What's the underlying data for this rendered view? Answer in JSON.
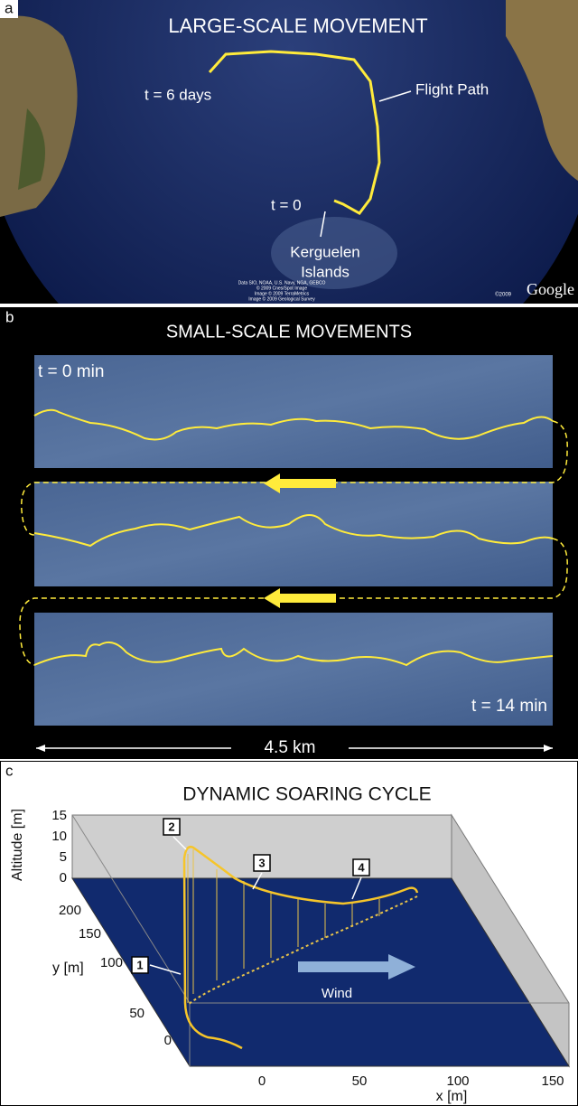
{
  "panels": [
    {
      "letter": "a",
      "title": "LARGE-SCALE MOVEMENT",
      "labels": [
        "t = 6 days",
        "Flight Path",
        "t = 0"
      ],
      "place": [
        "Kerguelen",
        "Islands"
      ],
      "credits": [
        "Data SIO, NOAA, U.S. Navy, NGA, GEBCO",
        "© 2009 Cnes/Spot Image",
        "Image © 2009 TerraMetrics",
        "Image © 2009 Geological Survey"
      ],
      "copyright": "©2009",
      "logo": "Google"
    },
    {
      "letter": "b",
      "title": "SMALL-SCALE MOVEMENTS",
      "start": "t = 0 min",
      "end": "t = 14 min",
      "scale": "4.5 km"
    },
    {
      "letter": "c",
      "title": "DYNAMIC SOARING CYCLE",
      "z_label": "Altitude [m]",
      "z_ticks": [
        "0",
        "5",
        "10",
        "15"
      ],
      "y_label": "y [m]",
      "y_ticks": [
        "0",
        "50",
        "100",
        "150",
        "200"
      ],
      "x_label": "x [m]",
      "x_ticks": [
        "0",
        "50",
        "100",
        "150"
      ],
      "markers": [
        "1",
        "2",
        "3",
        "4"
      ],
      "wind": "Wind"
    }
  ]
}
